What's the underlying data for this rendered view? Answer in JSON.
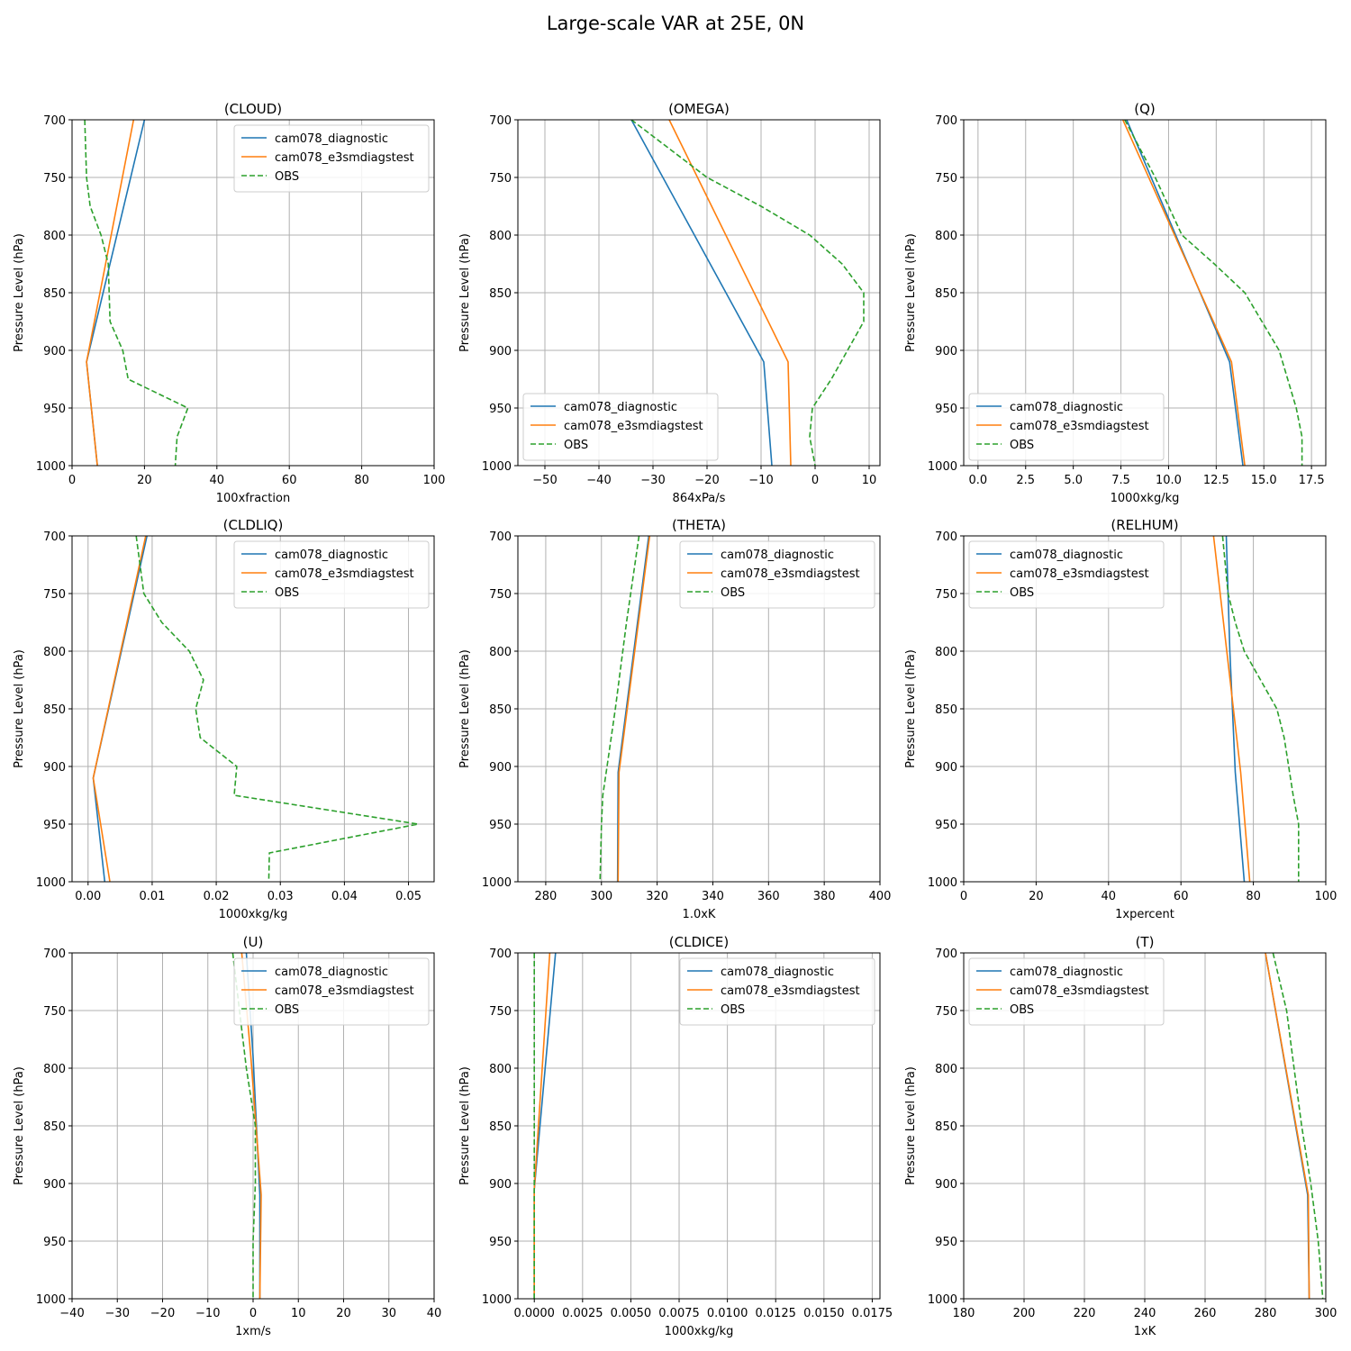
{
  "suptitle": "Large-scale VAR at 25E, 0N",
  "colors": {
    "model1": "#1f77b4",
    "model2": "#ff7f0e",
    "obs": "#2ca02c",
    "grid": "#b0b0b0"
  },
  "chart_data": [
    {
      "type": "line",
      "title": "(CLOUD)",
      "xlabel": "100xfraction",
      "ylabel": "Pressure Level (hPa)",
      "xlim": [
        0,
        100
      ],
      "ylim": [
        1000,
        700
      ],
      "xticks": [
        0,
        20,
        40,
        60,
        80,
        100
      ],
      "xtick_labels": [
        "0",
        "20",
        "40",
        "60",
        "80",
        "100"
      ],
      "yticks": [
        700,
        750,
        800,
        850,
        900,
        950,
        1000
      ],
      "grid": true,
      "legend": "upper right",
      "series": [
        {
          "name": "cam078_diagnostic",
          "color": "#1f77b4",
          "dash": false,
          "x": [
            20,
            4,
            7
          ],
          "y": [
            700,
            910,
            1000
          ]
        },
        {
          "name": "cam078_e3smdiagstest",
          "color": "#ff7f0e",
          "dash": false,
          "x": [
            17,
            4,
            7
          ],
          "y": [
            700,
            910,
            1000
          ]
        },
        {
          "name": "OBS",
          "color": "#2ca02c",
          "dash": true,
          "x": [
            3.5,
            4,
            5,
            8,
            10,
            10.5,
            14,
            15.5,
            32,
            29,
            28.5
          ],
          "y": [
            700,
            750,
            775,
            800,
            825,
            875,
            900,
            925,
            950,
            975,
            1000
          ]
        }
      ]
    },
    {
      "type": "line",
      "title": "(OMEGA)",
      "xlabel": "864xPa/s",
      "ylabel": "Pressure Level (hPa)",
      "xlim": [
        -55,
        12
      ],
      "ylim": [
        1000,
        700
      ],
      "xticks": [
        -50,
        -40,
        -30,
        -20,
        -10,
        0,
        10
      ],
      "xtick_labels": [
        "−50",
        "−40",
        "−30",
        "−20",
        "−10",
        "0",
        "10"
      ],
      "yticks": [
        700,
        750,
        800,
        850,
        900,
        950,
        1000
      ],
      "grid": true,
      "legend": "lower left",
      "series": [
        {
          "name": "cam078_diagnostic",
          "color": "#1f77b4",
          "dash": false,
          "x": [
            -34,
            -9.5,
            -8
          ],
          "y": [
            700,
            910,
            1000
          ]
        },
        {
          "name": "cam078_e3smdiagstest",
          "color": "#ff7f0e",
          "dash": false,
          "x": [
            -27,
            -5,
            -4.5
          ],
          "y": [
            700,
            910,
            1000
          ]
        },
        {
          "name": "OBS",
          "color": "#2ca02c",
          "dash": true,
          "x": [
            -34,
            -20,
            -10,
            -1,
            5,
            9,
            9,
            3,
            -0.5,
            -1,
            0
          ],
          "y": [
            700,
            750,
            775,
            800,
            825,
            850,
            875,
            925,
            950,
            975,
            1000
          ]
        }
      ]
    },
    {
      "type": "line",
      "title": "(Q)",
      "xlabel": "1000xkg/kg",
      "ylabel": "Pressure Level (hPa)",
      "xlim": [
        -0.75,
        18.25
      ],
      "ylim": [
        1000,
        700
      ],
      "xticks": [
        0,
        2.5,
        5,
        7.5,
        10,
        12.5,
        15,
        17.5
      ],
      "xtick_labels": [
        "0.0",
        "2.5",
        "5.0",
        "7.5",
        "10.0",
        "12.5",
        "15.0",
        "17.5"
      ],
      "yticks": [
        700,
        750,
        800,
        850,
        900,
        950,
        1000
      ],
      "grid": true,
      "legend": "lower left",
      "series": [
        {
          "name": "cam078_diagnostic",
          "color": "#1f77b4",
          "dash": false,
          "x": [
            7.8,
            13.2,
            13.9
          ],
          "y": [
            700,
            910,
            1000
          ]
        },
        {
          "name": "cam078_e3smdiagstest",
          "color": "#ff7f0e",
          "dash": false,
          "x": [
            7.6,
            13.3,
            14.0
          ],
          "y": [
            700,
            910,
            1000
          ]
        },
        {
          "name": "OBS",
          "color": "#2ca02c",
          "dash": true,
          "x": [
            7.7,
            9.3,
            10.7,
            12.4,
            14.0,
            14.9,
            15.8,
            16.7,
            17.0,
            17.0
          ],
          "y": [
            700,
            750,
            800,
            825,
            850,
            875,
            900,
            950,
            975,
            1000
          ]
        }
      ]
    },
    {
      "type": "line",
      "title": "(CLDLIQ)",
      "xlabel": "1000xkg/kg",
      "ylabel": "Pressure Level (hPa)",
      "xlim": [
        -0.0025,
        0.054
      ],
      "ylim": [
        1000,
        700
      ],
      "xticks": [
        0,
        0.01,
        0.02,
        0.03,
        0.04,
        0.05
      ],
      "xtick_labels": [
        "0.00",
        "0.01",
        "0.02",
        "0.03",
        "0.04",
        "0.05"
      ],
      "yticks": [
        700,
        750,
        800,
        850,
        900,
        950,
        1000
      ],
      "grid": true,
      "legend": "upper right",
      "series": [
        {
          "name": "cam078_diagnostic",
          "color": "#1f77b4",
          "dash": false,
          "x": [
            0.0092,
            0.0008,
            0.0026
          ],
          "y": [
            700,
            910,
            1000
          ]
        },
        {
          "name": "cam078_e3smdiagstest",
          "color": "#ff7f0e",
          "dash": false,
          "x": [
            0.009,
            0.0008,
            0.0034
          ],
          "y": [
            700,
            910,
            1000
          ]
        },
        {
          "name": "OBS",
          "color": "#2ca02c",
          "dash": true,
          "x": [
            0.0075,
            0.0087,
            0.0115,
            0.0158,
            0.018,
            0.0168,
            0.0175,
            0.0232,
            0.0228,
            0.0515,
            0.0283,
            0.0282
          ],
          "y": [
            700,
            750,
            775,
            800,
            825,
            850,
            875,
            900,
            925,
            950,
            975,
            1000
          ]
        }
      ]
    },
    {
      "type": "line",
      "title": "(THETA)",
      "xlabel": "1.0xK",
      "ylabel": "Pressure Level (hPa)",
      "xlim": [
        270,
        400
      ],
      "ylim": [
        1000,
        700
      ],
      "xticks": [
        280,
        300,
        320,
        340,
        360,
        380,
        400
      ],
      "xtick_labels": [
        "280",
        "300",
        "320",
        "340",
        "360",
        "380",
        "400"
      ],
      "yticks": [
        700,
        750,
        800,
        850,
        900,
        950,
        1000
      ],
      "grid": true,
      "legend": "upper right",
      "series": [
        {
          "name": "cam078_diagnostic",
          "color": "#1f77b4",
          "dash": false,
          "x": [
            317,
            306,
            305.8
          ],
          "y": [
            700,
            905,
            1000
          ]
        },
        {
          "name": "cam078_e3smdiagstest",
          "color": "#ff7f0e",
          "dash": false,
          "x": [
            317.3,
            306.3,
            306
          ],
          "y": [
            700,
            905,
            1000
          ]
        },
        {
          "name": "OBS",
          "color": "#2ca02c",
          "dash": true,
          "x": [
            313.5,
            309,
            305,
            302,
            300.5,
            300,
            299.5
          ],
          "y": [
            700,
            775,
            850,
            900,
            925,
            950,
            1000
          ]
        }
      ]
    },
    {
      "type": "line",
      "title": "(RELHUM)",
      "xlabel": "1xpercent",
      "ylabel": "Pressure Level (hPa)",
      "xlim": [
        0,
        100
      ],
      "ylim": [
        1000,
        700
      ],
      "xticks": [
        0,
        20,
        40,
        60,
        80,
        100
      ],
      "xtick_labels": [
        "0",
        "20",
        "40",
        "60",
        "80",
        "100"
      ],
      "yticks": [
        700,
        750,
        800,
        850,
        900,
        950,
        1000
      ],
      "grid": true,
      "legend": "upper left",
      "series": [
        {
          "name": "cam078_diagnostic",
          "color": "#1f77b4",
          "dash": false,
          "x": [
            72.5,
            73.5,
            75,
            77.5
          ],
          "y": [
            700,
            800,
            905,
            1000
          ]
        },
        {
          "name": "cam078_e3smdiagstest",
          "color": "#ff7f0e",
          "dash": false,
          "x": [
            69,
            76.5,
            79
          ],
          "y": [
            700,
            905,
            1000
          ]
        },
        {
          "name": "OBS",
          "color": "#2ca02c",
          "dash": true,
          "x": [
            71.5,
            73,
            75,
            77.5,
            82,
            86.5,
            88.5,
            91,
            92.5,
            92.5
          ],
          "y": [
            700,
            750,
            775,
            800,
            825,
            850,
            875,
            925,
            950,
            1000
          ]
        }
      ]
    },
    {
      "type": "line",
      "title": "(U)",
      "xlabel": "1xm/s",
      "ylabel": "Pressure Level (hPa)",
      "xlim": [
        -40,
        40
      ],
      "ylim": [
        1000,
        700
      ],
      "xticks": [
        -40,
        -30,
        -20,
        -10,
        0,
        10,
        20,
        30,
        40
      ],
      "xtick_labels": [
        "−40",
        "−30",
        "−20",
        "−10",
        "0",
        "10",
        "20",
        "30",
        "40"
      ],
      "yticks": [
        700,
        750,
        800,
        850,
        900,
        950,
        1000
      ],
      "grid": true,
      "legend": "upper right",
      "series": [
        {
          "name": "cam078_diagnostic",
          "color": "#1f77b4",
          "dash": false,
          "x": [
            -1.5,
            0,
            1.5,
            1.5
          ],
          "y": [
            700,
            790,
            910,
            1000
          ]
        },
        {
          "name": "cam078_e3smdiagstest",
          "color": "#ff7f0e",
          "dash": false,
          "x": [
            -2.5,
            -0.5,
            1.8,
            1.5
          ],
          "y": [
            700,
            790,
            910,
            1000
          ]
        },
        {
          "name": "OBS",
          "color": "#2ca02c",
          "dash": true,
          "x": [
            -4.5,
            -3,
            -1.5,
            0.5,
            0.5,
            0,
            0
          ],
          "y": [
            700,
            750,
            800,
            850,
            900,
            950,
            1000
          ]
        }
      ]
    },
    {
      "type": "line",
      "title": "(CLDICE)",
      "xlabel": "1000xkg/kg",
      "ylabel": "Pressure Level (hPa)",
      "xlim": [
        -0.00085,
        0.0179
      ],
      "ylim": [
        1000,
        700
      ],
      "xticks": [
        0,
        0.0025,
        0.005,
        0.0075,
        0.01,
        0.0125,
        0.015,
        0.0175
      ],
      "xtick_labels": [
        "0.0000",
        "0.0025",
        "0.0050",
        "0.0075",
        "0.0100",
        "0.0125",
        "0.0150",
        "0.0175"
      ],
      "yticks": [
        700,
        750,
        800,
        850,
        900,
        950,
        1000
      ],
      "grid": true,
      "legend": "upper right",
      "series": [
        {
          "name": "cam078_diagnostic",
          "color": "#1f77b4",
          "dash": false,
          "x": [
            0.0011,
            0.0,
            0.0
          ],
          "y": [
            700,
            905,
            1000
          ]
        },
        {
          "name": "cam078_e3smdiagstest",
          "color": "#ff7f0e",
          "dash": false,
          "x": [
            0.0008,
            0.0,
            0.0
          ],
          "y": [
            700,
            905,
            1000
          ]
        },
        {
          "name": "OBS",
          "color": "#2ca02c",
          "dash": true,
          "x": [
            0.0,
            0.0
          ],
          "y": [
            700,
            1000
          ]
        }
      ]
    },
    {
      "type": "line",
      "title": "(T)",
      "xlabel": "1xK",
      "ylabel": "Pressure Level (hPa)",
      "xlim": [
        180,
        300
      ],
      "ylim": [
        1000,
        700
      ],
      "xticks": [
        180,
        200,
        220,
        240,
        260,
        280,
        300
      ],
      "xtick_labels": [
        "180",
        "200",
        "220",
        "240",
        "260",
        "280",
        "300"
      ],
      "yticks": [
        700,
        750,
        800,
        850,
        900,
        950,
        1000
      ],
      "grid": true,
      "legend": "upper left",
      "series": [
        {
          "name": "cam078_diagnostic",
          "color": "#1f77b4",
          "dash": false,
          "x": [
            280,
            294,
            294.5
          ],
          "y": [
            700,
            910,
            1000
          ]
        },
        {
          "name": "cam078_e3smdiagstest",
          "color": "#ff7f0e",
          "dash": false,
          "x": [
            280,
            294.2,
            294.5
          ],
          "y": [
            700,
            910,
            1000
          ]
        },
        {
          "name": "OBS",
          "color": "#2ca02c",
          "dash": true,
          "x": [
            282.5,
            287,
            289.5,
            292,
            295,
            297.5,
            299
          ],
          "y": [
            700,
            750,
            800,
            850,
            900,
            950,
            1000
          ]
        }
      ]
    }
  ]
}
